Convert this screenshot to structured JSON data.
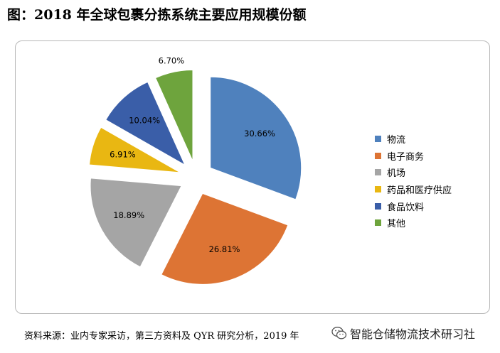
{
  "title": "图：2018 年全球包裹分拣系统主要应用规模份额",
  "source_note": "资料来源：业内专家采访，第三方资料及 QYR 研究分析，2019 年",
  "watermark": {
    "icon": "wechat-icon",
    "text": "智能仓储物流技术研习社"
  },
  "chart_data": {
    "type": "pie",
    "title": "",
    "start_angle_deg": 0,
    "direction": "clockwise",
    "exploded": true,
    "legend_position": "right",
    "slices": [
      {
        "label": "物流",
        "value": 30.66,
        "display": "30.66%",
        "color": "#4f81bd"
      },
      {
        "label": "电子商务",
        "value": 26.81,
        "display": "26.81%",
        "color": "#dd7434"
      },
      {
        "label": "机场",
        "value": 18.89,
        "display": "18.89%",
        "color": "#a5a5a5"
      },
      {
        "label": "药品和医疗供应",
        "value": 6.91,
        "display": "6.91%",
        "color": "#e9b712"
      },
      {
        "label": "食品饮料",
        "value": 10.04,
        "display": "10.04%",
        "color": "#3a5ea8"
      },
      {
        "label": "其他",
        "value": 6.7,
        "display": "6.70%",
        "color": "#6ea43d"
      }
    ]
  }
}
